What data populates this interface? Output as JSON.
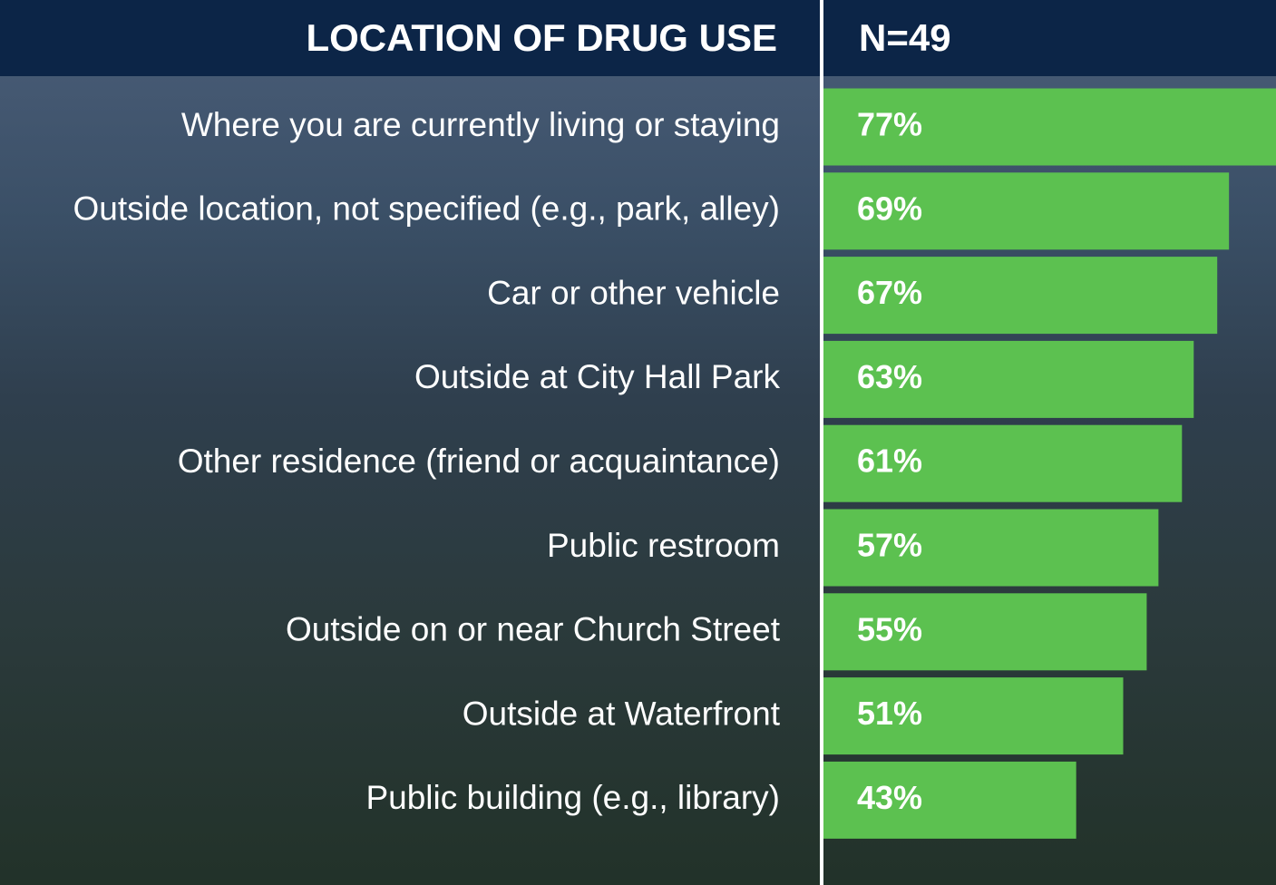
{
  "chart_data": {
    "type": "bar",
    "orientation": "horizontal",
    "title": "LOCATION OF DRUG USE",
    "subtitle": "N=49",
    "categories": [
      "Where you are currently living or staying",
      "Outside location, not specified (e.g., park, alley)",
      "Car or other vehicle",
      "Outside at City Hall Park",
      "Other residence (friend or acquaintance)",
      "Public restroom",
      "Outside on or near Church Street",
      "Outside at Waterfront",
      "Public building (e.g., library)"
    ],
    "values": [
      77,
      69,
      67,
      63,
      61,
      57,
      55,
      51,
      43
    ],
    "value_labels": [
      "77%",
      "69%",
      "67%",
      "63%",
      "61%",
      "57%",
      "55%",
      "51%",
      "43%"
    ],
    "color": "#5cc150",
    "xlim": [
      0,
      77
    ]
  }
}
